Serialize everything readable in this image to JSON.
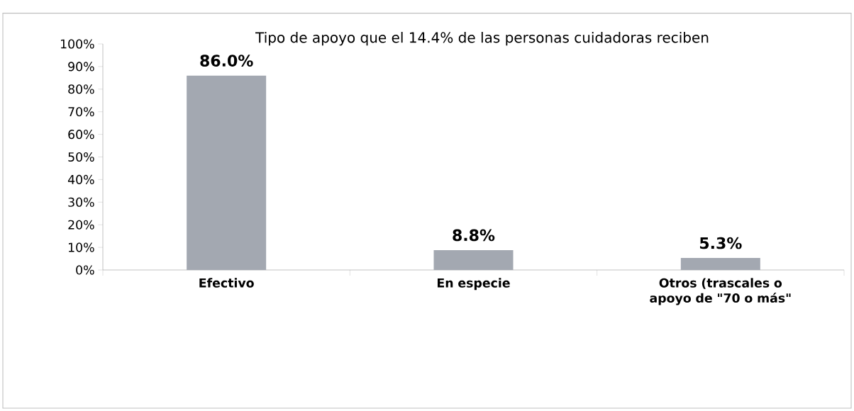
{
  "chart_data": {
    "type": "bar",
    "title": "Tipo de apoyo que el 14.4% de las personas cuidadoras reciben",
    "categories": [
      "Efectivo",
      "En especie",
      "Otros (trascales o apoyo de \"70 o más\""
    ],
    "values": [
      86.0,
      8.8,
      5.3
    ],
    "value_labels": [
      "86.0%",
      "8.8%",
      "5.3%"
    ],
    "color": "#a3a8b1",
    "ylim": [
      0,
      100
    ],
    "yticks": [
      {
        "value": 0,
        "label": "0%"
      },
      {
        "value": 10,
        "label": "10%"
      },
      {
        "value": 20,
        "label": "20%"
      },
      {
        "value": 30,
        "label": "30%"
      },
      {
        "value": 40,
        "label": "40%"
      },
      {
        "value": 50,
        "label": "50%"
      },
      {
        "value": 60,
        "label": "60%"
      },
      {
        "value": 70,
        "label": "70%"
      },
      {
        "value": 80,
        "label": "80%"
      },
      {
        "value": 90,
        "label": "90%"
      },
      {
        "value": 100,
        "label": "100%"
      }
    ]
  }
}
